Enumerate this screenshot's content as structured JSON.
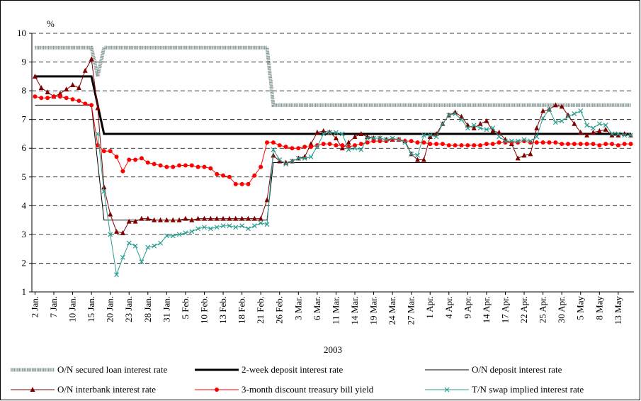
{
  "chart_data": {
    "type": "line",
    "y_unit": "%",
    "x_label": "2003",
    "ylim": [
      1,
      10
    ],
    "yticks": [
      1,
      2,
      3,
      4,
      5,
      6,
      7,
      8,
      9,
      10
    ],
    "grid": true,
    "categories": [
      "2 Jan.",
      null,
      null,
      "7 Jan.",
      null,
      null,
      "10 Jan.",
      null,
      null,
      "15 Jan.",
      null,
      null,
      "20 Jan.",
      null,
      null,
      "23 Jan.",
      null,
      null,
      "28 Jan.",
      null,
      null,
      "31 Jan.",
      null,
      null,
      "5 Feb.",
      null,
      null,
      "10 Feb.",
      null,
      null,
      "13 Feb.",
      null,
      null,
      "18 Feb.",
      null,
      null,
      "21 Feb.",
      null,
      null,
      "26 Feb.",
      null,
      null,
      "3 Mar.",
      null,
      null,
      "6 Mar.",
      null,
      null,
      "11 Mar.",
      null,
      null,
      "14 Mar.",
      null,
      null,
      "19 Mar.",
      null,
      null,
      "24 Mar.",
      null,
      null,
      "27 Mar.",
      null,
      null,
      "1 Apr.",
      null,
      null,
      "4 Apr.",
      null,
      null,
      "9 Apr.",
      null,
      null,
      "14 Apr.",
      null,
      null,
      "17 Apr.",
      null,
      null,
      "22 Apr.",
      null,
      null,
      "25 Apr.",
      null,
      null,
      "30 Apr.",
      null,
      null,
      "5 May",
      null,
      null,
      "8 May",
      null,
      null,
      "13 May",
      null,
      null
    ],
    "series": [
      {
        "name": "O/N secured loan interest rate",
        "color": "#8a9b9b",
        "width": 5,
        "marker": "none",
        "values": [
          9.5,
          9.5,
          9.5,
          9.5,
          9.5,
          9.5,
          9.5,
          9.5,
          9.5,
          9.5,
          8.5,
          9.5,
          9.5,
          9.5,
          9.5,
          9.5,
          9.5,
          9.5,
          9.5,
          9.5,
          9.5,
          9.5,
          9.5,
          9.5,
          9.5,
          9.5,
          9.5,
          9.5,
          9.5,
          9.5,
          9.5,
          9.5,
          9.5,
          9.5,
          9.5,
          9.5,
          9.5,
          9.5,
          7.5,
          7.5,
          7.5,
          7.5,
          7.5,
          7.5,
          7.5,
          7.5,
          7.5,
          7.5,
          7.5,
          7.5,
          7.5,
          7.5,
          7.5,
          7.5,
          7.5,
          7.5,
          7.5,
          7.5,
          7.5,
          7.5,
          7.5,
          7.5,
          7.5,
          7.5,
          7.5,
          7.5,
          7.5,
          7.5,
          7.5,
          7.5,
          7.5,
          7.5,
          7.5,
          7.5,
          7.5,
          7.5,
          7.5,
          7.5,
          7.5,
          7.5,
          7.5,
          7.5,
          7.5,
          7.5,
          7.5,
          7.5,
          7.5,
          7.5,
          7.5,
          7.5,
          7.5,
          7.5,
          7.5,
          7.5,
          7.5,
          7.5
        ]
      },
      {
        "name": "2-week deposit interest rate",
        "color": "#000000",
        "width": 3,
        "marker": "none",
        "values": [
          8.5,
          8.5,
          8.5,
          8.5,
          8.5,
          8.5,
          8.5,
          8.5,
          8.5,
          8.5,
          7.5,
          6.5,
          6.5,
          6.5,
          6.5,
          6.5,
          6.5,
          6.5,
          6.5,
          6.5,
          6.5,
          6.5,
          6.5,
          6.5,
          6.5,
          6.5,
          6.5,
          6.5,
          6.5,
          6.5,
          6.5,
          6.5,
          6.5,
          6.5,
          6.5,
          6.5,
          6.5,
          6.5,
          6.5,
          6.5,
          6.5,
          6.5,
          6.5,
          6.5,
          6.5,
          6.5,
          6.5,
          6.5,
          6.5,
          6.5,
          6.5,
          6.5,
          6.5,
          6.5,
          6.5,
          6.5,
          6.5,
          6.5,
          6.5,
          6.5,
          6.5,
          6.5,
          6.5,
          6.5,
          6.5,
          6.5,
          6.5,
          6.5,
          6.5,
          6.5,
          6.5,
          6.5,
          6.5,
          6.5,
          6.5,
          6.5,
          6.5,
          6.5,
          6.5,
          6.5,
          6.5,
          6.5,
          6.5,
          6.5,
          6.5,
          6.5,
          6.5,
          6.5,
          6.5,
          6.5,
          6.5,
          6.5,
          6.5,
          6.5,
          6.5,
          6.5
        ]
      },
      {
        "name": "O/N deposit interest rate",
        "color": "#000000",
        "width": 1,
        "marker": "none",
        "values": [
          7.5,
          7.5,
          7.5,
          7.5,
          7.5,
          7.5,
          7.5,
          7.5,
          7.5,
          7.5,
          5.5,
          3.5,
          3.5,
          3.5,
          3.5,
          3.5,
          3.5,
          3.5,
          3.5,
          3.5,
          3.5,
          3.5,
          3.5,
          3.5,
          3.5,
          3.5,
          3.5,
          3.5,
          3.5,
          3.5,
          3.5,
          3.5,
          3.5,
          3.5,
          3.5,
          3.5,
          3.5,
          3.5,
          5.5,
          5.5,
          5.5,
          5.5,
          5.5,
          5.5,
          5.5,
          5.5,
          5.5,
          5.5,
          5.5,
          5.5,
          5.5,
          5.5,
          5.5,
          5.5,
          5.5,
          5.5,
          5.5,
          5.5,
          5.5,
          5.5,
          5.5,
          5.5,
          5.5,
          5.5,
          5.5,
          5.5,
          5.5,
          5.5,
          5.5,
          5.5,
          5.5,
          5.5,
          5.5,
          5.5,
          5.5,
          5.5,
          5.5,
          5.5,
          5.5,
          5.5,
          5.5,
          5.5,
          5.5,
          5.5,
          5.5,
          5.5,
          5.5,
          5.5,
          5.5,
          5.5,
          5.5,
          5.5,
          5.5,
          5.5,
          5.5,
          5.5
        ]
      },
      {
        "name": "O/N interbank interest rate",
        "color": "#800000",
        "width": 1,
        "marker": "triangle",
        "values": [
          8.5,
          8.1,
          7.95,
          7.8,
          7.9,
          8.05,
          8.2,
          8.1,
          8.7,
          9.1,
          7.4,
          4.65,
          3.7,
          3.1,
          3.05,
          3.45,
          3.45,
          3.55,
          3.55,
          3.5,
          3.5,
          3.5,
          3.5,
          3.5,
          3.55,
          3.5,
          3.55,
          3.55,
          3.55,
          3.55,
          3.55,
          3.55,
          3.55,
          3.55,
          3.55,
          3.55,
          3.55,
          4.2,
          5.75,
          5.55,
          5.5,
          5.55,
          5.65,
          5.7,
          6.15,
          6.55,
          6.6,
          6.55,
          6.35,
          6.0,
          6.2,
          6.4,
          6.5,
          6.4,
          6.35,
          6.35,
          6.3,
          6.3,
          6.3,
          6.25,
          5.8,
          5.6,
          5.6,
          6.4,
          6.5,
          6.85,
          7.15,
          7.25,
          7.1,
          6.8,
          6.7,
          6.85,
          6.95,
          6.6,
          6.55,
          6.3,
          6.15,
          5.65,
          5.75,
          5.8,
          6.7,
          7.3,
          7.35,
          7.5,
          7.45,
          7.15,
          6.85,
          6.55,
          6.45,
          6.55,
          6.6,
          6.65,
          6.45,
          6.45,
          6.5,
          6.45
        ]
      },
      {
        "name": "3-month discount treasury bill yield",
        "color": "#ff0000",
        "width": 1,
        "marker": "circle",
        "values": [
          7.8,
          7.75,
          7.75,
          7.8,
          7.8,
          7.75,
          7.7,
          7.65,
          7.55,
          7.5,
          6.1,
          5.9,
          5.9,
          5.7,
          5.2,
          5.6,
          5.6,
          5.65,
          5.5,
          5.45,
          5.4,
          5.35,
          5.35,
          5.4,
          5.4,
          5.4,
          5.35,
          5.35,
          5.3,
          5.1,
          5.05,
          5.0,
          4.75,
          4.75,
          4.75,
          5.05,
          5.35,
          6.2,
          6.2,
          6.1,
          6.05,
          6.0,
          6.0,
          6.05,
          6.05,
          6.1,
          6.15,
          6.15,
          6.1,
          6.1,
          6.05,
          6.1,
          6.15,
          6.2,
          6.25,
          6.25,
          6.25,
          6.3,
          6.3,
          6.25,
          6.25,
          6.2,
          6.2,
          6.15,
          6.15,
          6.15,
          6.1,
          6.1,
          6.1,
          6.1,
          6.1,
          6.1,
          6.15,
          6.15,
          6.2,
          6.2,
          6.2,
          6.2,
          6.25,
          6.2,
          6.2,
          6.2,
          6.2,
          6.2,
          6.15,
          6.15,
          6.15,
          6.15,
          6.15,
          6.15,
          6.1,
          6.15,
          6.15,
          6.1,
          6.15,
          6.15
        ]
      },
      {
        "name": "T/N swap implied interest rate",
        "color": "#2a9d8f",
        "width": 1,
        "marker": "cross",
        "values": [
          null,
          null,
          null,
          null,
          null,
          null,
          null,
          null,
          null,
          null,
          6.5,
          4.5,
          3.0,
          1.6,
          2.2,
          2.7,
          2.6,
          2.05,
          2.55,
          2.6,
          2.7,
          2.95,
          2.95,
          3.0,
          3.05,
          3.1,
          3.2,
          3.25,
          3.2,
          3.25,
          3.3,
          3.3,
          3.25,
          3.3,
          3.2,
          3.3,
          3.4,
          3.35,
          5.95,
          5.6,
          5.45,
          5.55,
          5.65,
          5.65,
          5.7,
          6.05,
          6.5,
          6.55,
          6.55,
          6.5,
          5.95,
          6.0,
          5.95,
          6.35,
          6.35,
          6.35,
          6.3,
          6.35,
          6.3,
          6.2,
          5.8,
          5.75,
          6.45,
          6.45,
          6.4,
          6.85,
          7.15,
          7.2,
          7.0,
          6.7,
          6.8,
          6.7,
          6.65,
          6.7,
          6.4,
          6.25,
          6.25,
          6.25,
          6.3,
          6.25,
          6.4,
          7.05,
          7.35,
          6.9,
          6.95,
          7.1,
          7.2,
          7.3,
          6.8,
          6.7,
          6.85,
          6.8,
          6.5,
          6.5,
          6.45,
          6.45
        ]
      }
    ]
  }
}
